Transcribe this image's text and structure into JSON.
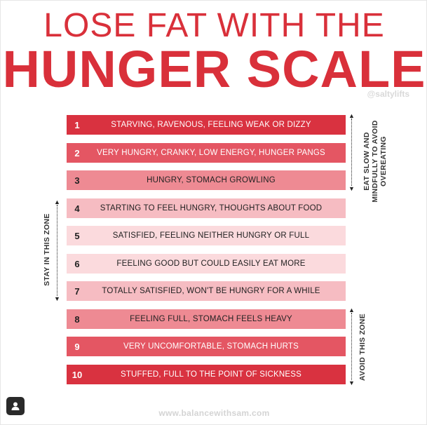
{
  "title": {
    "line1": "LOSE FAT WITH THE",
    "line2": "HUNGER SCALE"
  },
  "handle": "@saltylifts",
  "scale": [
    {
      "number": "1",
      "text": "STARVING, RAVENOUS, FEELING WEAK OR DIZZY",
      "bg": "#d93240",
      "fg": "#ffffff"
    },
    {
      "number": "2",
      "text": "VERY HUNGRY, CRANKY, LOW ENERGY, HUNGER PANGS",
      "bg": "#e45663",
      "fg": "#ffffff"
    },
    {
      "number": "3",
      "text": "HUNGRY, STOMACH GROWLING",
      "bg": "#ee8a93",
      "fg": "#222222"
    },
    {
      "number": "4",
      "text": "STARTING TO FEEL HUNGRY, THOUGHTS ABOUT FOOD",
      "bg": "#f6bcc2",
      "fg": "#222222"
    },
    {
      "number": "5",
      "text": "SATISFIED, FEELING NEITHER HUNGRY OR FULL",
      "bg": "#fbdadd",
      "fg": "#222222"
    },
    {
      "number": "6",
      "text": "FEELING GOOD BUT COULD EASILY EAT MORE",
      "bg": "#fbdadd",
      "fg": "#222222"
    },
    {
      "number": "7",
      "text": "TOTALLY SATISFIED, WON'T BE HUNGRY FOR A WHILE",
      "bg": "#f6bcc2",
      "fg": "#222222"
    },
    {
      "number": "8",
      "text": "FEELING FULL, STOMACH FEELS HEAVY",
      "bg": "#ee8a93",
      "fg": "#222222"
    },
    {
      "number": "9",
      "text": "VERY UNCOMFORTABLE, STOMACH HURTS",
      "bg": "#e45663",
      "fg": "#ffffff"
    },
    {
      "number": "10",
      "text": "STUFFED, FULL TO THE POINT OF SICKNESS",
      "bg": "#d93240",
      "fg": "#ffffff"
    }
  ],
  "labels": {
    "eat_slow": "EAT SLOW AND MINDFULLY TO AVOID OVEREATING",
    "stay_zone": "STAY IN THIS ZONE",
    "avoid_zone": "AVOID THIS ZONE"
  },
  "footer": "www.balancewithsam.com",
  "colors": {
    "accent": "#d9303a"
  },
  "icons": {
    "profile": "user-icon"
  }
}
